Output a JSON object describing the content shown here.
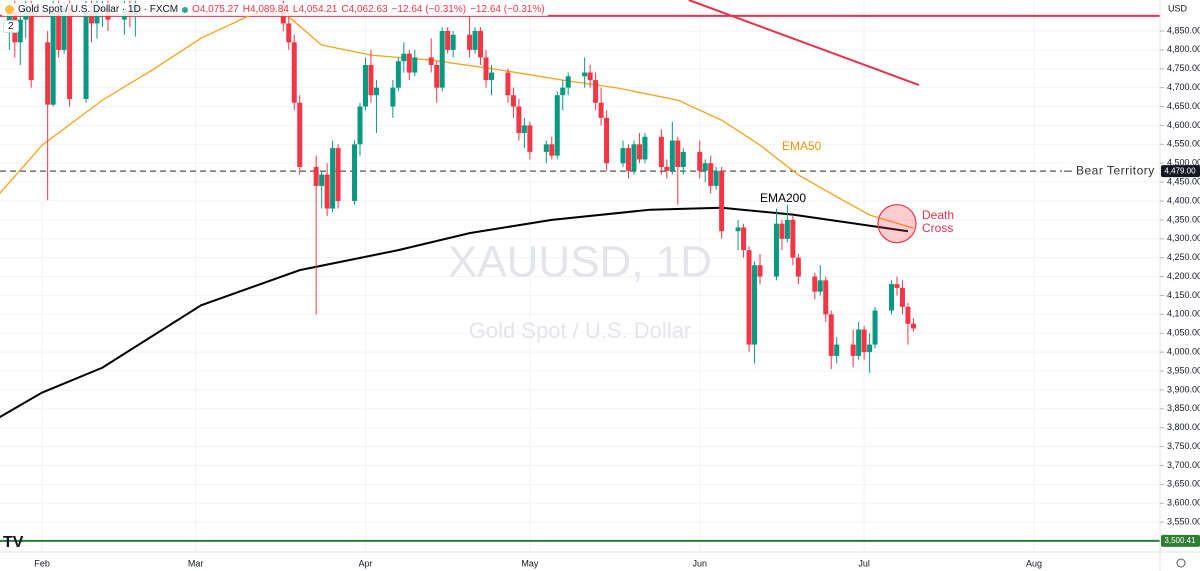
{
  "header": {
    "symbol": "Gold Spot / U.S. Dollar · 1D · FXCM",
    "open": "O4,075.27",
    "high": "H4,089.84",
    "low": "L4,054.21",
    "close": "C4,062.63",
    "change": "−12.64 (−0.31%)",
    "change_repeat": "−12.64 (−0.31%)",
    "indicators": "2",
    "currency": "USD"
  },
  "chart_data": {
    "type": "candlestick",
    "watermark": "XAUUSD, 1D",
    "watermark_subtitle": "Gold Spot / U.S. Dollar",
    "up_color": "#089981",
    "down_color": "#f23645",
    "x": [
      25,
      26,
      27,
      28,
      29,
      32,
      33,
      34,
      35,
      36,
      39,
      40,
      41,
      42,
      43,
      46,
      47,
      48,
      75,
      76,
      77,
      78,
      81,
      82,
      83,
      84,
      85,
      88,
      89,
      90,
      91,
      92,
      95,
      96,
      97,
      98,
      99,
      102,
      103,
      104,
      105,
      106,
      109,
      110,
      111,
      112,
      113,
      116,
      117,
      118,
      119,
      120,
      123,
      124,
      125,
      126,
      127,
      130,
      131,
      132,
      133,
      134,
      137,
      138,
      139,
      140,
      141,
      144,
      145,
      146,
      147,
      148,
      151,
      152,
      153,
      154,
      155,
      158,
      159,
      160,
      161,
      162,
      165,
      166,
      167,
      168,
      169,
      172,
      173,
      174,
      175,
      176,
      179,
      180,
      181,
      182,
      183,
      186,
      187,
      188,
      189,
      190
    ],
    "open": [
      4850,
      4900,
      4820,
      4880,
      4910,
      4820,
      4655,
      4900,
      4800,
      4910,
      4670,
      4900,
      4870,
      4900,
      4910,
      4880,
      4905,
      4890,
      4920,
      4870,
      4820,
      4660,
      4490,
      4440,
      4470,
      4380,
      4540,
      4400,
      4550,
      4650,
      4760,
      4680,
      4650,
      4700,
      4770,
      4790,
      4740,
      4780,
      4760,
      4700,
      4850,
      4800,
      4840,
      4800,
      4850,
      4780,
      4720,
      4740,
      4680,
      4650,
      4580,
      4600,
      4530,
      4550,
      4520,
      4680,
      4700,
      4730,
      4740,
      4720,
      4660,
      4620,
      4500,
      4540,
      4480,
      4550,
      4510,
      4570,
      4490,
      4480,
      4560,
      4490,
      4530,
      4480,
      4500,
      4440,
      4480,
      4320,
      4330,
      4270,
      4020,
      4230,
      4200,
      4340,
      4300,
      4350,
      4250,
      4200,
      4160,
      4190,
      4100,
      3990,
      4020,
      3990,
      4060,
      4000,
      4020,
      4110,
      4180,
      4170,
      4120,
      4075.27
    ],
    "high": [
      4925,
      4930,
      4900,
      4930,
      4930,
      4850,
      4930,
      4930,
      4925,
      4930,
      4930,
      4930,
      4930,
      4930,
      4930,
      4930,
      4930,
      4930,
      4930,
      4900,
      4840,
      4680,
      4520,
      4480,
      4500,
      4560,
      4550,
      4560,
      4660,
      4780,
      4800,
      4720,
      4720,
      4780,
      4820,
      4800,
      4800,
      4830,
      4770,
      4860,
      4860,
      4850,
      4890,
      4860,
      4860,
      4800,
      4760,
      4750,
      4700,
      4670,
      4620,
      4610,
      4560,
      4570,
      4690,
      4720,
      4740,
      4780,
      4760,
      4740,
      4700,
      4640,
      4560,
      4550,
      4560,
      4580,
      4580,
      4590,
      4510,
      4610,
      4570,
      4540,
      4560,
      4510,
      4520,
      4490,
      4490,
      4350,
      4340,
      4280,
      4240,
      4260,
      4380,
      4350,
      4390,
      4360,
      4260,
      4210,
      4230,
      4200,
      4110,
      4040,
      4060,
      4080,
      4070,
      4050,
      4120,
      4190,
      4200,
      4190,
      4130,
      4089.84
    ],
    "low": [
      4800,
      4780,
      4760,
      4830,
      4700,
      4402,
      4650,
      4780,
      4790,
      4650,
      4660,
      4820,
      4830,
      4860,
      4850,
      4840,
      4860,
      4835,
      4850,
      4800,
      4640,
      4470,
      4100,
      4380,
      4360,
      4370,
      4380,
      4390,
      4520,
      4640,
      4660,
      4580,
      4620,
      4690,
      4740,
      4720,
      4730,
      4740,
      4660,
      4690,
      4790,
      4780,
      4780,
      4790,
      4760,
      4700,
      4680,
      4660,
      4620,
      4560,
      4540,
      4510,
      4500,
      4510,
      4510,
      4640,
      4680,
      4700,
      4700,
      4640,
      4600,
      4480,
      4490,
      4460,
      4470,
      4500,
      4500,
      4470,
      4460,
      4470,
      4390,
      4470,
      4460,
      4450,
      4420,
      4430,
      4300,
      4270,
      4250,
      4000,
      3970,
      4180,
      4190,
      4270,
      4290,
      4230,
      4180,
      4140,
      4150,
      4080,
      3955,
      3970,
      3960,
      3980,
      3980,
      3945,
      4010,
      4100,
      4150,
      4100,
      4020,
      4054.21
    ],
    "close": [
      4900,
      4820,
      4880,
      4910,
      4720,
      4655,
      4900,
      4800,
      4910,
      4670,
      4900,
      4870,
      4900,
      4910,
      4880,
      4905,
      4890,
      4920,
      4870,
      4820,
      4660,
      4490,
      4440,
      4470,
      4380,
      4540,
      4400,
      4550,
      4650,
      4760,
      4680,
      4700,
      4700,
      4770,
      4790,
      4740,
      4780,
      4760,
      4700,
      4850,
      4800,
      4840,
      4800,
      4850,
      4780,
      4720,
      4740,
      4680,
      4650,
      4580,
      4600,
      4530,
      4550,
      4520,
      4680,
      4700,
      4730,
      4740,
      4720,
      4660,
      4620,
      4500,
      4540,
      4480,
      4550,
      4510,
      4570,
      4490,
      4480,
      4560,
      4490,
      4530,
      4480,
      4500,
      4440,
      4480,
      4320,
      4330,
      4270,
      4020,
      4230,
      4200,
      4340,
      4300,
      4350,
      4250,
      4200,
      4160,
      4190,
      4100,
      3990,
      4020,
      3990,
      4060,
      4000,
      4020,
      4110,
      4180,
      4170,
      4120,
      4075,
      4062.63
    ],
    "series": [
      {
        "name": "EMA50",
        "color": "#f7a21b",
        "x": [
          23,
          31,
          42,
          51,
          60,
          69,
          75,
          82,
          91,
          102,
          115,
          126,
          136,
          147,
          155,
          162,
          169,
          177,
          182,
          190
        ],
        "values": [
          4416,
          4548,
          4667,
          4746,
          4831,
          4892,
          4900,
          4813,
          4786,
          4773,
          4746,
          4720,
          4699,
          4667,
          4614,
          4548,
          4469,
          4403,
          4363,
          4328
        ]
      },
      {
        "name": "EMA200",
        "color": "#000000",
        "x": [
          23,
          31,
          42,
          60,
          78,
          96,
          109,
          124,
          142,
          155,
          168,
          189
        ],
        "values": [
          3826,
          3893,
          3959,
          4124,
          4217,
          4270,
          4315,
          4350,
          4377,
          4382,
          4364,
          4320
        ]
      }
    ],
    "levels": [
      {
        "name": "Bear Territory",
        "value": 4479,
        "label": "4,479.00",
        "color": "#555555"
      },
      {
        "value": 3500.41,
        "label": "3,500.41",
        "color": "#2e7d32"
      },
      {
        "value": 4890,
        "color": "#e5334b"
      }
    ],
    "trendline": {
      "color": "#e5334b",
      "x": [
        149,
        191
      ],
      "values": [
        4932,
        4707
      ]
    },
    "death_cross": {
      "text": "Death Cross",
      "x": 187,
      "value": 4340
    },
    "xlim": [
      23.3,
      235
    ],
    "ylim": [
      3471,
      4932
    ],
    "xticks": [
      {
        "value": 31,
        "label": "Feb"
      },
      {
        "value": 59,
        "label": "Mar"
      },
      {
        "value": 90,
        "label": "Apr"
      },
      {
        "value": 120,
        "label": "May"
      },
      {
        "value": 151,
        "label": "Jun"
      },
      {
        "value": 181,
        "label": "Jul"
      },
      {
        "value": 212,
        "label": "Aug"
      }
    ],
    "yticks": [
      {
        "value": 3550,
        "label": "3,550.00"
      },
      {
        "value": 3600,
        "label": "3,600.00"
      },
      {
        "value": 3650,
        "label": "3,650.00"
      },
      {
        "value": 3700,
        "label": "3,700.00"
      },
      {
        "value": 3750,
        "label": "3,750.00"
      },
      {
        "value": 3800,
        "label": "3,800.00"
      },
      {
        "value": 3850,
        "label": "3,850.00"
      },
      {
        "value": 3900,
        "label": "3,900.00"
      },
      {
        "value": 3950,
        "label": "3,950.00"
      },
      {
        "value": 4000,
        "label": "4,000.00"
      },
      {
        "value": 4050,
        "label": "4,050.00"
      },
      {
        "value": 4100,
        "label": "4,100.00"
      },
      {
        "value": 4150,
        "label": "4,150.00"
      },
      {
        "value": 4200,
        "label": "4,200.00"
      },
      {
        "value": 4250,
        "label": "4,250.00"
      },
      {
        "value": 4300,
        "label": "4,300.00"
      },
      {
        "value": 4350,
        "label": "4,350.00"
      },
      {
        "value": 4400,
        "label": "4,400.00"
      },
      {
        "value": 4450,
        "label": "4,450.00"
      },
      {
        "value": 4500,
        "label": "4,500.00"
      },
      {
        "value": 4550,
        "label": "4,550.00"
      },
      {
        "value": 4600,
        "label": "4,600.00"
      },
      {
        "value": 4650,
        "label": "4,650.00"
      },
      {
        "value": 4700,
        "label": "4,700.00"
      },
      {
        "value": 4750,
        "label": "4,750.00"
      },
      {
        "value": 4800,
        "label": "4,800.00"
      },
      {
        "value": 4850,
        "label": "4,850.00"
      }
    ],
    "grid": true
  }
}
